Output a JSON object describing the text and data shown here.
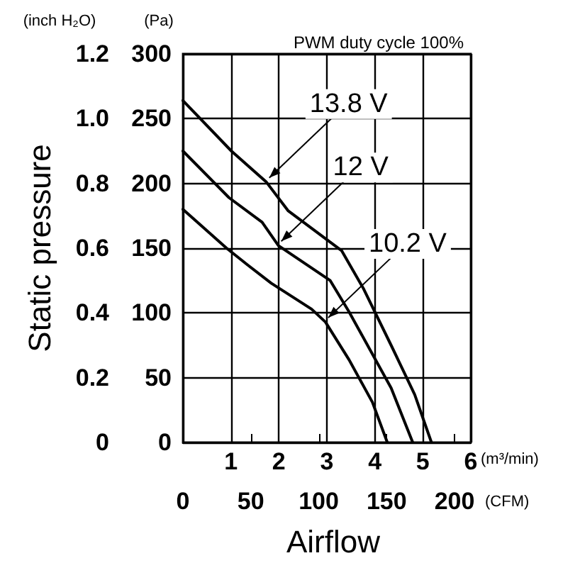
{
  "chart_data": {
    "type": "line",
    "xlabel": "Airflow",
    "ylabel": "Static pressure",
    "annotations": [
      "(m³/min)",
      "(CFM)",
      "(Pa)",
      "(inch H₂O)",
      "PWM duty cycle 100%"
    ],
    "xlim": [
      0,
      6
    ],
    "xticks": [
      1,
      2,
      3,
      4,
      5,
      6
    ],
    "x2lim": [
      0,
      212
    ],
    "x2ticks": [
      0,
      50,
      100,
      150,
      200
    ],
    "ylim": [
      0,
      1.2
    ],
    "yticks": [
      0,
      0.2,
      0.4,
      0.6,
      0.8,
      {
        "value": 1,
        "label": "1.0"
      },
      1.2
    ],
    "y2lim": [
      0,
      300
    ],
    "y2ticks": [
      0,
      50,
      100,
      150,
      200,
      250,
      300
    ],
    "grid": true,
    "marker": "none",
    "line_style": "solid",
    "series": [
      {
        "name": "13.8 V",
        "color": "#000000",
        "axis": "y2",
        "x": [
          0,
          1.01,
          1.74,
          2.19,
          3.31,
          3.76,
          4.34,
          4.83,
          5.18
        ],
        "values": [
          264,
          225,
          201,
          179,
          148,
          119,
          75,
          37,
          0
        ]
      },
      {
        "name": "12 V",
        "color": "#000000",
        "axis": "y2",
        "x": [
          0,
          0.96,
          1.65,
          1.99,
          3.07,
          3.46,
          4.34,
          4.79
        ],
        "values": [
          225,
          189,
          170,
          152,
          125,
          101,
          42,
          0
        ]
      },
      {
        "name": "10.2 V",
        "color": "#000000",
        "axis": "y2",
        "x": [
          0,
          0.91,
          1.35,
          1.84,
          2.68,
          2.97,
          3.46,
          3.95,
          4.26
        ],
        "values": [
          180,
          150,
          137,
          123,
          103,
          93,
          64,
          31,
          0
        ]
      }
    ]
  }
}
